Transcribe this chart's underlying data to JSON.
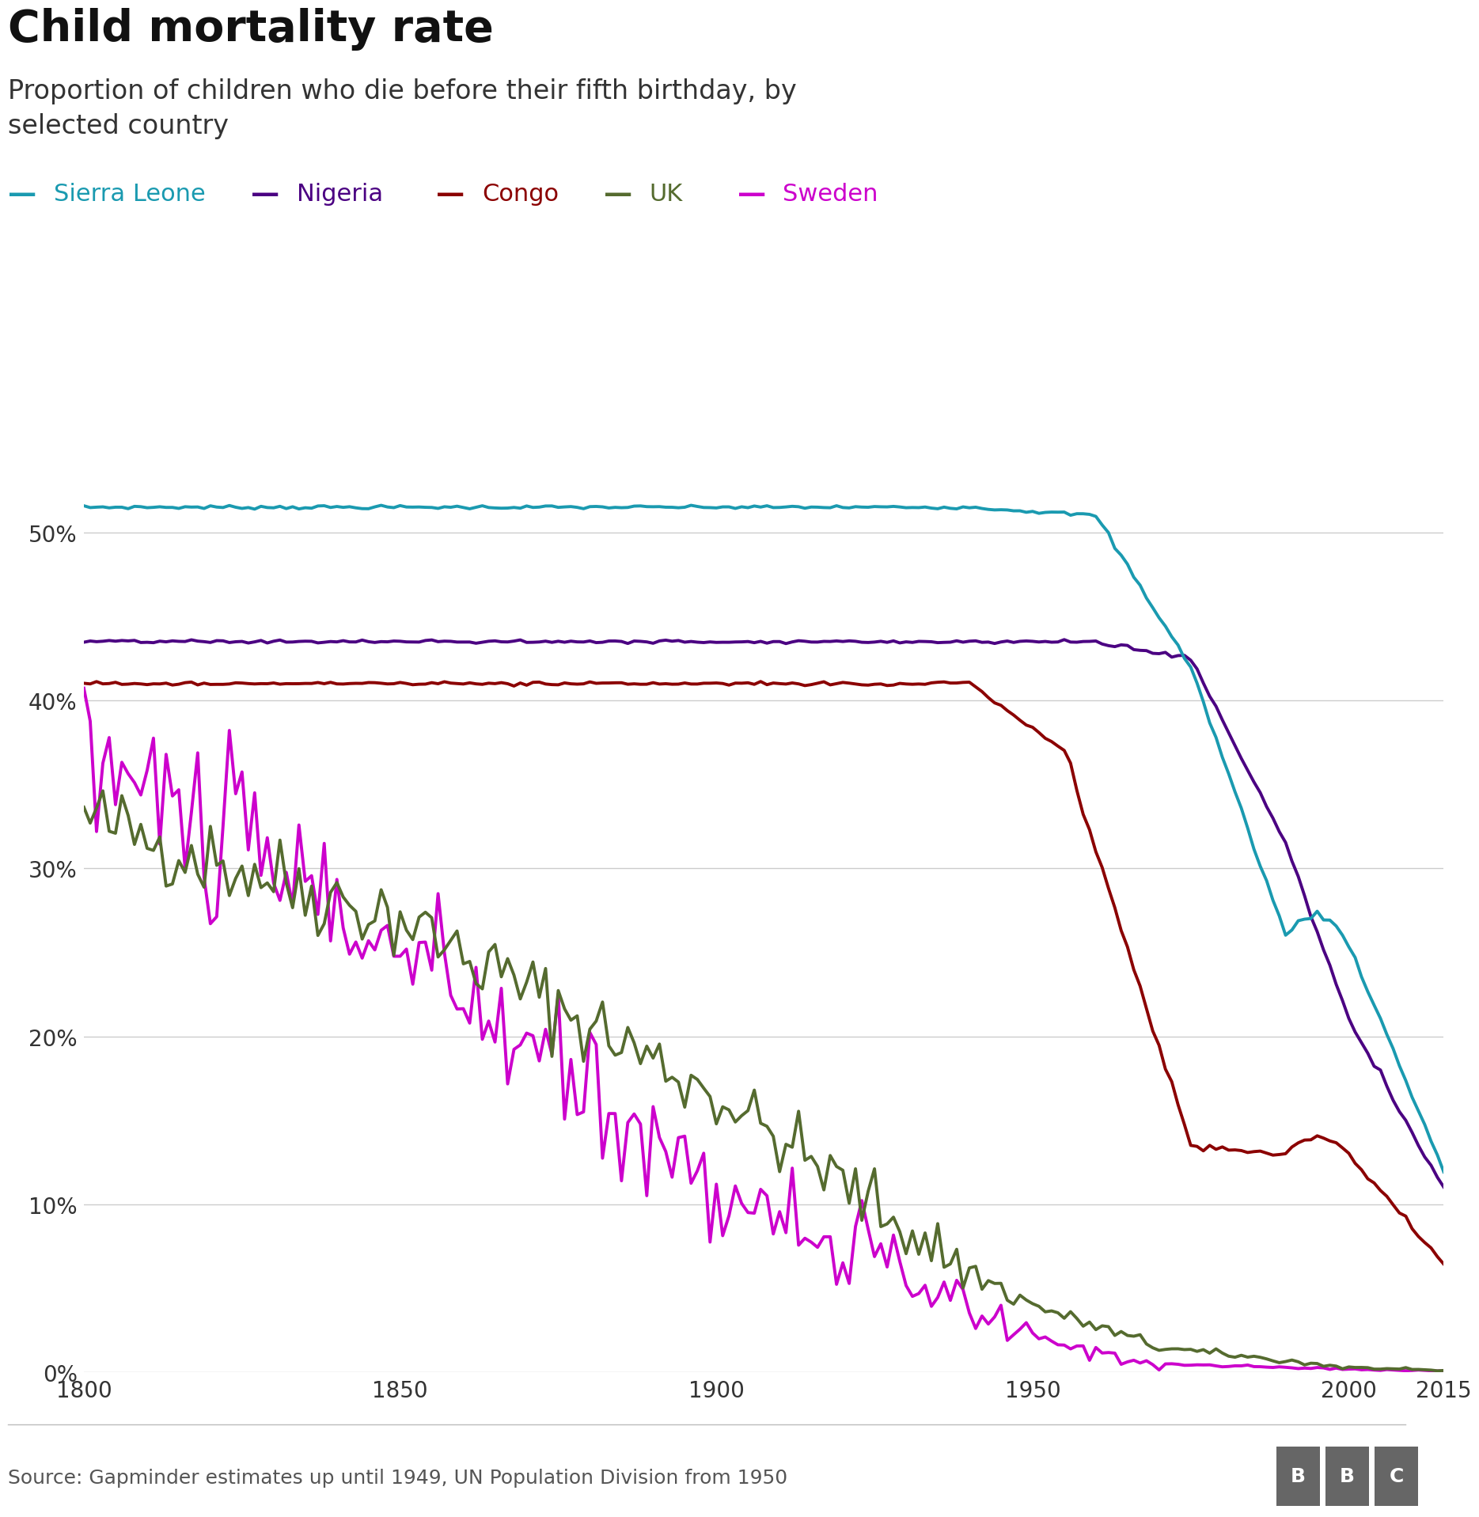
{
  "title": "Child mortality rate",
  "subtitle": "Proportion of children who die before their fifth birthday, by\nselected country",
  "source_text": "Source: Gapminder estimates up until 1949, UN Population Division from 1950",
  "background_color": "#ffffff",
  "grid_color": "#cccccc",
  "title_fontsize": 40,
  "subtitle_fontsize": 24,
  "legend_fontsize": 22,
  "axis_fontsize": 20,
  "source_fontsize": 18,
  "xlim": [
    1800,
    2015
  ],
  "ylim": [
    0,
    0.565
  ],
  "xticks": [
    1800,
    1850,
    1900,
    1950,
    2000,
    2015
  ],
  "yticks": [
    0.0,
    0.1,
    0.2,
    0.3,
    0.4,
    0.5
  ],
  "countries": [
    "Sierra Leone",
    "Nigeria",
    "Congo",
    "UK",
    "Sweden"
  ],
  "colors": {
    "Sierra Leone": "#1a9ab0",
    "Nigeria": "#4b0082",
    "Congo": "#8b0000",
    "UK": "#556b2f",
    "Sweden": "#cc00cc"
  },
  "line_width": 2.8
}
